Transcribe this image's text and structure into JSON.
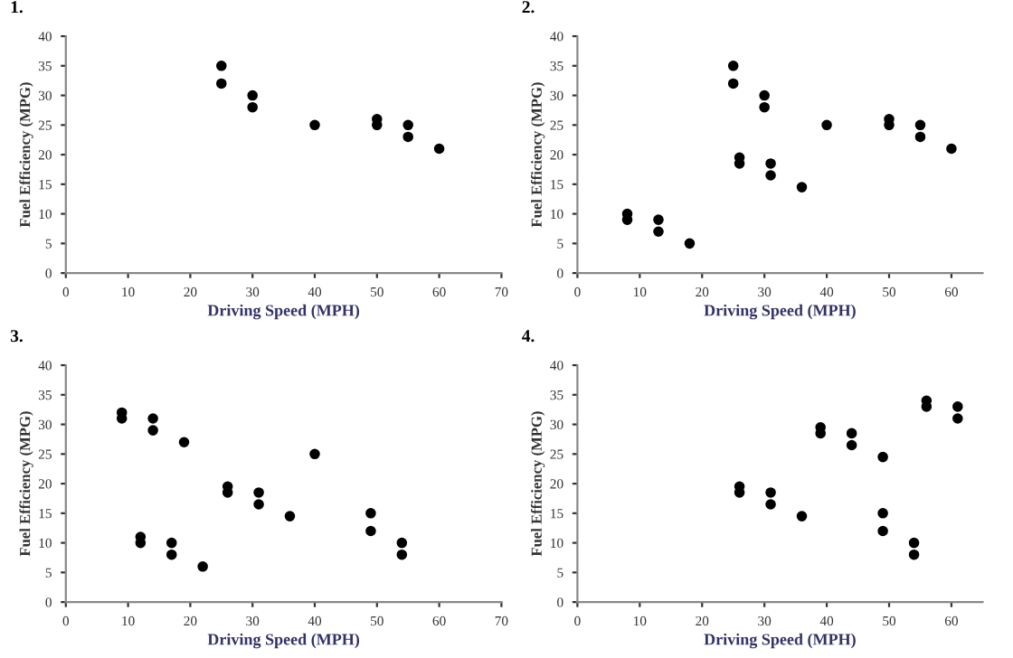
{
  "chart_data": [
    {
      "type": "scatter",
      "title": "1.",
      "xlabel": "Driving Speed (MPH)",
      "ylabel": "Fuel Efficiency (MPG)",
      "xlim": [
        0,
        70
      ],
      "xticks": [
        0,
        10,
        20,
        30,
        40,
        50,
        60,
        70
      ],
      "ylim": [
        0,
        40
      ],
      "yticks": [
        0,
        5,
        10,
        15,
        20,
        25,
        30,
        35,
        40
      ],
      "grid": false,
      "legend": false,
      "marker": "circle",
      "series": [
        {
          "color": "#000000",
          "x": [
            25,
            25,
            30,
            30,
            40,
            50,
            50,
            55,
            55,
            60
          ],
          "values": [
            35,
            32,
            30,
            28,
            25,
            26,
            25,
            25,
            23,
            21
          ]
        }
      ]
    },
    {
      "type": "scatter",
      "title": "2.",
      "xlabel": "Driving Speed (MPH)",
      "ylabel": "Fuel Efficiency (MPG)",
      "xlim": [
        0,
        65
      ],
      "xticks": [
        0,
        10,
        20,
        30,
        40,
        50,
        60
      ],
      "ylim": [
        0,
        40
      ],
      "yticks": [
        0,
        5,
        10,
        15,
        20,
        25,
        30,
        35,
        40
      ],
      "grid": false,
      "legend": false,
      "marker": "circle",
      "series": [
        {
          "color": "#000000",
          "x": [
            8,
            8,
            13,
            13,
            18,
            25,
            25,
            26,
            26,
            30,
            30,
            31,
            31,
            36,
            40,
            50,
            50,
            55,
            55,
            60
          ],
          "values": [
            10,
            9,
            9,
            7,
            5,
            35,
            32,
            19.5,
            18.5,
            30,
            28,
            18.5,
            16.5,
            14.5,
            25,
            26,
            25,
            25,
            23,
            21
          ]
        }
      ]
    },
    {
      "type": "scatter",
      "title": "3.",
      "xlabel": "Driving Speed (MPH)",
      "ylabel": "Fuel Efficiency (MPG)",
      "xlim": [
        0,
        70
      ],
      "xticks": [
        0,
        10,
        20,
        30,
        40,
        50,
        60,
        70
      ],
      "ylim": [
        0,
        40
      ],
      "yticks": [
        0,
        5,
        10,
        15,
        20,
        25,
        30,
        35,
        40
      ],
      "grid": false,
      "legend": false,
      "marker": "circle",
      "series": [
        {
          "color": "#000000",
          "x": [
            9,
            9,
            14,
            14,
            19,
            12,
            12,
            17,
            17,
            22,
            26,
            26,
            31,
            31,
            36,
            40,
            49,
            49,
            54,
            54
          ],
          "values": [
            32,
            31,
            31,
            29,
            27,
            11,
            10,
            10,
            8,
            6,
            19.5,
            18.5,
            18.5,
            16.5,
            14.5,
            25,
            15,
            12,
            10,
            8
          ]
        }
      ]
    },
    {
      "type": "scatter",
      "title": "4.",
      "xlabel": "Driving Speed (MPH)",
      "ylabel": "Fuel Efficiency (MPG)",
      "xlim": [
        0,
        65
      ],
      "xticks": [
        0,
        10,
        20,
        30,
        40,
        50,
        60
      ],
      "ylim": [
        0,
        40
      ],
      "yticks": [
        0,
        5,
        10,
        15,
        20,
        25,
        30,
        35,
        40
      ],
      "grid": false,
      "legend": false,
      "marker": "circle",
      "series": [
        {
          "color": "#000000",
          "x": [
            26,
            26,
            31,
            31,
            36,
            39,
            39,
            44,
            44,
            49,
            49,
            49,
            54,
            54,
            56,
            56,
            61,
            61
          ],
          "values": [
            19.5,
            18.5,
            18.5,
            16.5,
            14.5,
            29.5,
            28.5,
            28.5,
            26.5,
            24.5,
            15,
            12,
            10,
            8,
            34,
            33,
            33,
            31
          ]
        }
      ]
    }
  ]
}
